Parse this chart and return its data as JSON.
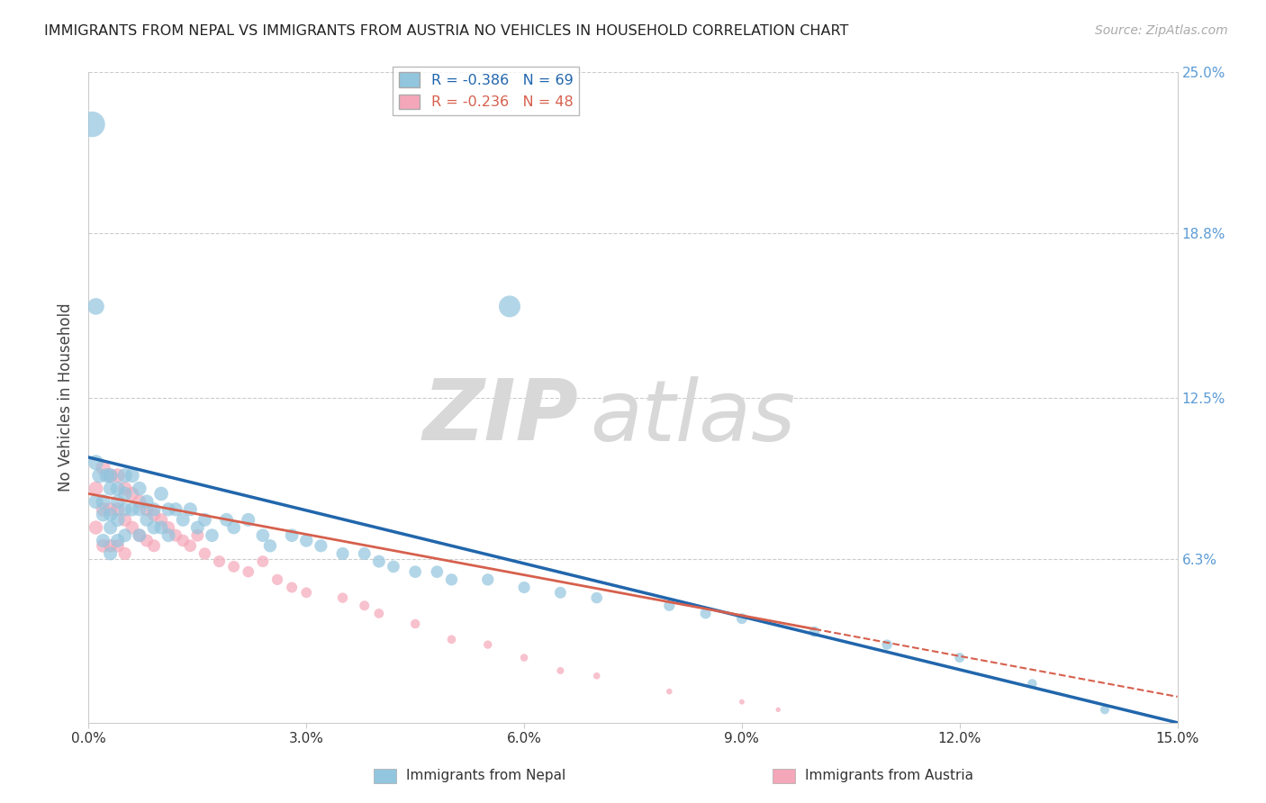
{
  "title": "IMMIGRANTS FROM NEPAL VS IMMIGRANTS FROM AUSTRIA NO VEHICLES IN HOUSEHOLD CORRELATION CHART",
  "source": "Source: ZipAtlas.com",
  "ylabel": "No Vehicles in Household",
  "watermark_zip": "ZIP",
  "watermark_atlas": "atlas",
  "xlim": [
    0,
    0.15
  ],
  "ylim": [
    0,
    0.25
  ],
  "xtick_vals": [
    0.0,
    0.03,
    0.06,
    0.09,
    0.12,
    0.15
  ],
  "xtick_labels": [
    "0.0%",
    "3.0%",
    "6.0%",
    "9.0%",
    "12.0%",
    "15.0%"
  ],
  "ytick_vals": [
    0.0,
    0.063,
    0.125,
    0.188,
    0.25
  ],
  "ytick_labels_right": [
    "",
    "6.3%",
    "12.5%",
    "18.8%",
    "25.0%"
  ],
  "nepal_R": -0.386,
  "nepal_N": 69,
  "austria_R": -0.236,
  "austria_N": 48,
  "nepal_color": "#92c5de",
  "austria_color": "#f4a7b9",
  "nepal_line_color": "#2166ac",
  "austria_line_color": "#d6604d",
  "nepal_line_intercept": 0.102,
  "nepal_line_slope": -0.68,
  "austria_line_intercept": 0.088,
  "austria_line_slope": -0.52,
  "grid_color": "#cccccc",
  "background_color": "#ffffff",
  "nepal_x": [
    0.0005,
    0.001,
    0.001,
    0.001,
    0.0015,
    0.002,
    0.002,
    0.002,
    0.0025,
    0.003,
    0.003,
    0.003,
    0.003,
    0.003,
    0.004,
    0.004,
    0.004,
    0.004,
    0.005,
    0.005,
    0.005,
    0.005,
    0.006,
    0.006,
    0.007,
    0.007,
    0.007,
    0.008,
    0.008,
    0.009,
    0.009,
    0.01,
    0.01,
    0.011,
    0.011,
    0.012,
    0.013,
    0.014,
    0.015,
    0.016,
    0.017,
    0.019,
    0.02,
    0.022,
    0.024,
    0.025,
    0.028,
    0.03,
    0.032,
    0.035,
    0.038,
    0.04,
    0.042,
    0.045,
    0.048,
    0.05,
    0.055,
    0.058,
    0.06,
    0.065,
    0.07,
    0.08,
    0.085,
    0.09,
    0.1,
    0.11,
    0.12,
    0.13,
    0.14
  ],
  "nepal_y": [
    0.23,
    0.16,
    0.1,
    0.085,
    0.095,
    0.085,
    0.08,
    0.07,
    0.095,
    0.095,
    0.09,
    0.08,
    0.075,
    0.065,
    0.09,
    0.085,
    0.078,
    0.07,
    0.095,
    0.088,
    0.082,
    0.072,
    0.095,
    0.082,
    0.09,
    0.082,
    0.072,
    0.085,
    0.078,
    0.082,
    0.075,
    0.088,
    0.075,
    0.082,
    0.072,
    0.082,
    0.078,
    0.082,
    0.075,
    0.078,
    0.072,
    0.078,
    0.075,
    0.078,
    0.072,
    0.068,
    0.072,
    0.07,
    0.068,
    0.065,
    0.065,
    0.062,
    0.06,
    0.058,
    0.058,
    0.055,
    0.055,
    0.16,
    0.052,
    0.05,
    0.048,
    0.045,
    0.042,
    0.04,
    0.035,
    0.03,
    0.025,
    0.015,
    0.005
  ],
  "austria_x": [
    0.001,
    0.001,
    0.002,
    0.002,
    0.002,
    0.003,
    0.003,
    0.003,
    0.004,
    0.004,
    0.004,
    0.005,
    0.005,
    0.005,
    0.006,
    0.006,
    0.007,
    0.007,
    0.008,
    0.008,
    0.009,
    0.009,
    0.01,
    0.011,
    0.012,
    0.013,
    0.014,
    0.015,
    0.016,
    0.018,
    0.02,
    0.022,
    0.024,
    0.026,
    0.028,
    0.03,
    0.035,
    0.038,
    0.04,
    0.045,
    0.05,
    0.055,
    0.06,
    0.065,
    0.07,
    0.08,
    0.09,
    0.095
  ],
  "austria_y": [
    0.09,
    0.075,
    0.098,
    0.082,
    0.068,
    0.095,
    0.082,
    0.068,
    0.095,
    0.082,
    0.068,
    0.09,
    0.078,
    0.065,
    0.088,
    0.075,
    0.085,
    0.072,
    0.082,
    0.07,
    0.08,
    0.068,
    0.078,
    0.075,
    0.072,
    0.07,
    0.068,
    0.072,
    0.065,
    0.062,
    0.06,
    0.058,
    0.062,
    0.055,
    0.052,
    0.05,
    0.048,
    0.045,
    0.042,
    0.038,
    0.032,
    0.03,
    0.025,
    0.02,
    0.018,
    0.012,
    0.008,
    0.005
  ],
  "nepal_sizes": [
    280,
    120,
    100,
    90,
    95,
    90,
    85,
    80,
    90,
    88,
    85,
    82,
    80,
    78,
    88,
    85,
    82,
    80,
    90,
    85,
    82,
    78,
    88,
    82,
    85,
    80,
    78,
    82,
    78,
    80,
    78,
    85,
    78,
    80,
    78,
    80,
    78,
    80,
    78,
    78,
    75,
    78,
    75,
    78,
    75,
    72,
    75,
    72,
    70,
    70,
    68,
    68,
    65,
    65,
    65,
    62,
    62,
    200,
    60,
    58,
    55,
    52,
    50,
    50,
    48,
    45,
    42,
    38,
    35
  ],
  "austria_sizes": [
    88,
    82,
    90,
    85,
    78,
    90,
    82,
    75,
    88,
    80,
    72,
    85,
    78,
    70,
    82,
    75,
    80,
    72,
    78,
    70,
    75,
    68,
    72,
    70,
    68,
    65,
    65,
    68,
    62,
    60,
    58,
    55,
    58,
    52,
    50,
    48,
    45,
    42,
    40,
    38,
    32,
    30,
    25,
    22,
    20,
    15,
    12,
    10
  ]
}
